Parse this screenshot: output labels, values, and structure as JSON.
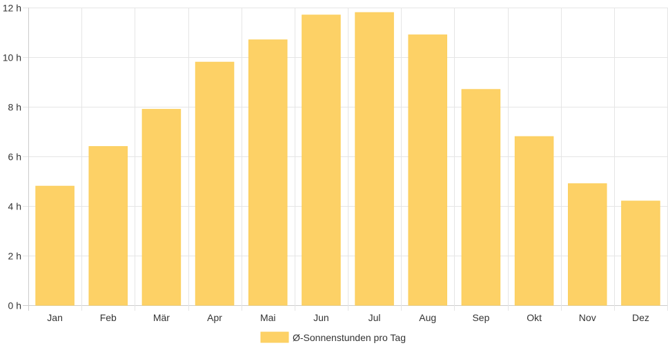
{
  "chart_data": {
    "type": "bar",
    "categories": [
      "Jan",
      "Feb",
      "Mär",
      "Apr",
      "Mai",
      "Jun",
      "Jul",
      "Aug",
      "Sep",
      "Okt",
      "Nov",
      "Dez"
    ],
    "values": [
      4.8,
      6.4,
      7.9,
      9.8,
      10.7,
      11.7,
      11.8,
      10.9,
      8.7,
      6.8,
      4.9,
      4.2
    ],
    "series": [
      {
        "name": "Ø-Sonnenstunden pro Tag",
        "values": [
          4.8,
          6.4,
          7.9,
          9.8,
          10.7,
          11.7,
          11.8,
          10.9,
          8.7,
          6.8,
          4.9,
          4.2
        ]
      }
    ],
    "y_ticks": [
      "0 h",
      "2 h",
      "4 h",
      "6 h",
      "8 h",
      "10 h",
      "12 h"
    ],
    "ylim": [
      0,
      12
    ],
    "grid": true,
    "legend_position": "bottom-center",
    "colors": {
      "bar_fill": "#fdd166",
      "bar_stroke": "#fccf5e",
      "grid": "#e5e5e5",
      "axis": "#cccccc",
      "text": "#333333"
    }
  }
}
